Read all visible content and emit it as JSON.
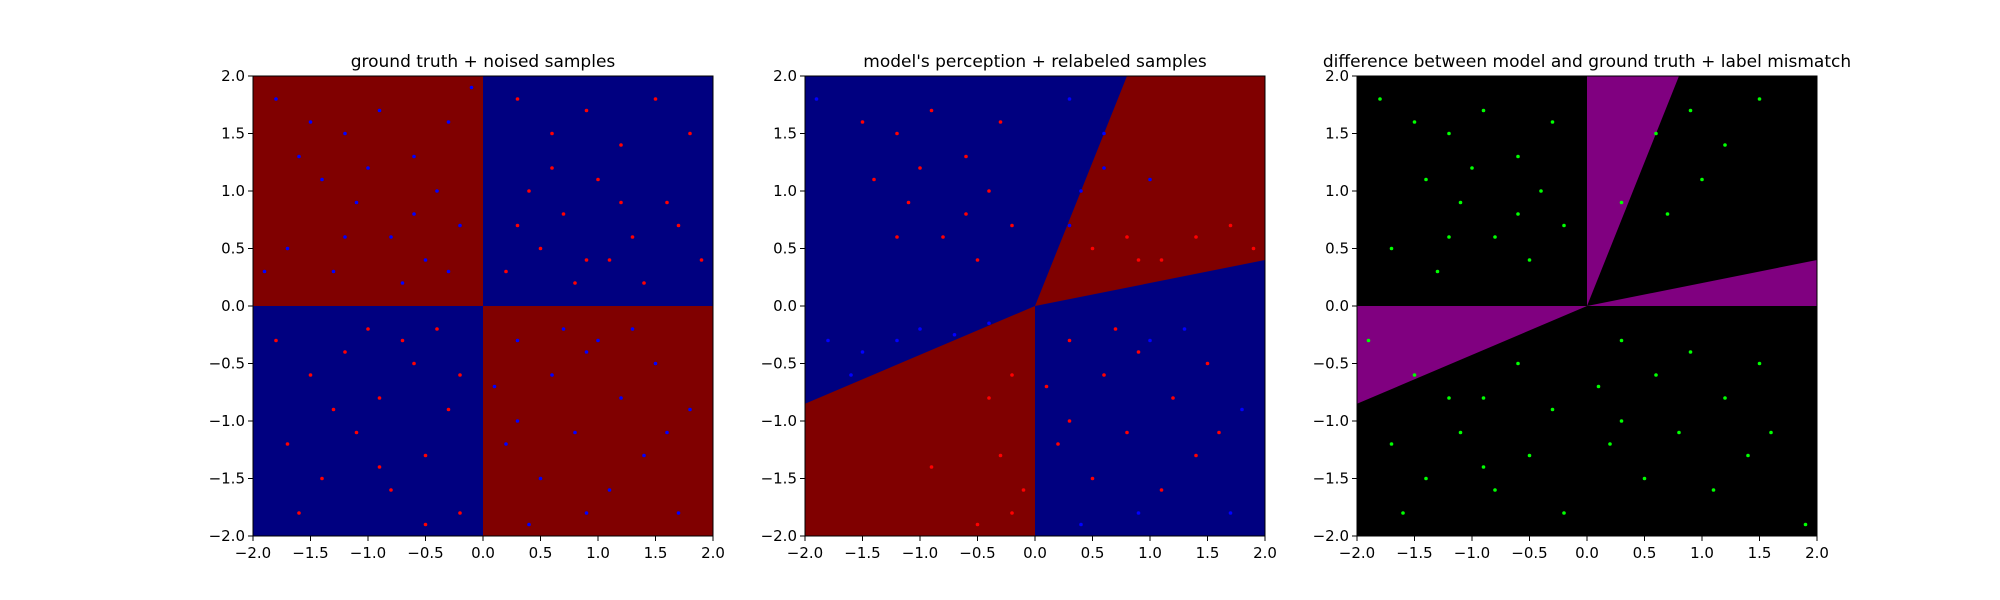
{
  "chart_data": [
    {
      "type": "scatter",
      "title": "ground truth + noised samples",
      "xlim": [
        -2.0,
        2.0
      ],
      "ylim": [
        -2.0,
        2.0
      ],
      "xticks": [
        "−2.0",
        "−1.5",
        "−1.0",
        "−0.5",
        "0.0",
        "0.5",
        "1.0",
        "1.5",
        "2.0"
      ],
      "yticks": [
        "−2.0",
        "−1.5",
        "−1.0",
        "−0.5",
        "0.0",
        "0.5",
        "1.0",
        "1.5",
        "2.0"
      ],
      "background": {
        "regions": [
          {
            "description": "x<0,y>0",
            "color": "#800000"
          },
          {
            "description": "x>0,y>0",
            "color": "#000080"
          },
          {
            "description": "x<0,y<0",
            "color": "#000080"
          },
          {
            "description": "x>0,y<0",
            "color": "#800000"
          }
        ]
      },
      "series": [
        {
          "color": "#0000ff",
          "points": [
            [
              -1.8,
              1.8
            ],
            [
              -1.5,
              1.6
            ],
            [
              -1.2,
              1.5
            ],
            [
              -0.9,
              1.7
            ],
            [
              -0.6,
              1.3
            ],
            [
              -0.3,
              1.6
            ],
            [
              -0.2,
              0.7
            ],
            [
              -0.5,
              0.4
            ],
            [
              -0.8,
              0.6
            ],
            [
              -1.1,
              0.9
            ],
            [
              -1.4,
              1.1
            ],
            [
              -1.7,
              0.5
            ],
            [
              -1.9,
              0.3
            ],
            [
              -1.3,
              0.3
            ],
            [
              -0.7,
              0.2
            ],
            [
              -0.3,
              0.3
            ],
            [
              -0.4,
              1.0
            ],
            [
              -1.0,
              1.2
            ],
            [
              -1.6,
              1.3
            ],
            [
              -0.1,
              1.9
            ],
            [
              -0.6,
              0.8
            ],
            [
              -1.2,
              0.6
            ],
            [
              0.3,
              -0.3
            ],
            [
              0.6,
              -0.6
            ],
            [
              0.9,
              -0.4
            ],
            [
              1.2,
              -0.8
            ],
            [
              1.5,
              -0.5
            ],
            [
              1.8,
              -0.9
            ],
            [
              0.2,
              -1.2
            ],
            [
              0.5,
              -1.5
            ],
            [
              0.8,
              -1.1
            ],
            [
              1.1,
              -1.6
            ],
            [
              1.4,
              -1.3
            ],
            [
              1.7,
              -1.8
            ],
            [
              0.4,
              -1.9
            ],
            [
              0.7,
              -0.2
            ],
            [
              1.0,
              -0.3
            ],
            [
              1.3,
              -0.2
            ],
            [
              0.1,
              -0.7
            ],
            [
              1.6,
              -1.1
            ],
            [
              0.9,
              -1.8
            ],
            [
              0.3,
              -1.0
            ]
          ]
        },
        {
          "color": "#ff0000",
          "points": [
            [
              0.3,
              1.8
            ],
            [
              0.6,
              1.5
            ],
            [
              0.9,
              1.7
            ],
            [
              1.2,
              1.4
            ],
            [
              1.5,
              1.8
            ],
            [
              1.8,
              1.5
            ],
            [
              0.4,
              1.0
            ],
            [
              0.7,
              0.8
            ],
            [
              1.0,
              1.1
            ],
            [
              1.3,
              0.6
            ],
            [
              1.6,
              0.9
            ],
            [
              1.9,
              0.4
            ],
            [
              0.2,
              0.3
            ],
            [
              0.5,
              0.5
            ],
            [
              0.8,
              0.2
            ],
            [
              1.1,
              0.4
            ],
            [
              1.4,
              0.2
            ],
            [
              1.7,
              0.7
            ],
            [
              0.3,
              0.7
            ],
            [
              0.6,
              1.2
            ],
            [
              1.2,
              0.9
            ],
            [
              0.9,
              0.4
            ],
            [
              -1.8,
              -0.3
            ],
            [
              -1.5,
              -0.6
            ],
            [
              -1.2,
              -0.4
            ],
            [
              -0.9,
              -0.8
            ],
            [
              -0.6,
              -0.5
            ],
            [
              -0.3,
              -0.9
            ],
            [
              -1.7,
              -1.2
            ],
            [
              -1.4,
              -1.5
            ],
            [
              -1.1,
              -1.1
            ],
            [
              -0.8,
              -1.6
            ],
            [
              -0.5,
              -1.3
            ],
            [
              -0.2,
              -1.8
            ],
            [
              -1.6,
              -1.8
            ],
            [
              -1.0,
              -0.2
            ],
            [
              -0.7,
              -0.3
            ],
            [
              -0.4,
              -0.2
            ],
            [
              -1.3,
              -0.9
            ],
            [
              -0.2,
              -0.6
            ],
            [
              -0.9,
              -1.4
            ],
            [
              -0.5,
              -1.9
            ]
          ]
        }
      ]
    },
    {
      "type": "scatter",
      "title": "model's perception + relabeled samples",
      "xlim": [
        -2.0,
        2.0
      ],
      "ylim": [
        -2.0,
        2.0
      ],
      "xticks": [
        "−2.0",
        "−1.5",
        "−1.0",
        "−0.5",
        "0.0",
        "0.5",
        "1.0",
        "1.5",
        "2.0"
      ],
      "yticks": [
        "−2.0",
        "−1.5",
        "−1.0",
        "−0.5",
        "0.0",
        "0.5",
        "1.0",
        "1.5",
        "2.0"
      ],
      "background": {
        "base_color": "#000080",
        "regions": [
          {
            "description": "wedge between y=2.7x and y=0.2x, x>0",
            "color": "#800000",
            "polygon": [
              [
                0,
                0
              ],
              [
                0.8,
                2.0
              ],
              [
                2.0,
                2.0
              ],
              [
                2.0,
                0.4
              ]
            ]
          },
          {
            "description": "wedge between y=0.42x and x=0, x<0",
            "color": "#800000",
            "polygon": [
              [
                0,
                0
              ],
              [
                -2.0,
                -0.85
              ],
              [
                -2.0,
                -2.0
              ],
              [
                0,
                -2.0
              ]
            ]
          }
        ]
      },
      "series": [
        {
          "color": "#ff0000",
          "points": [
            [
              -1.5,
              1.6
            ],
            [
              -1.2,
              1.5
            ],
            [
              -0.9,
              1.7
            ],
            [
              -0.6,
              1.3
            ],
            [
              -0.3,
              1.6
            ],
            [
              -0.2,
              0.7
            ],
            [
              -0.5,
              0.4
            ],
            [
              -0.8,
              0.6
            ],
            [
              -1.1,
              0.9
            ],
            [
              -1.4,
              1.1
            ],
            [
              -0.4,
              1.0
            ],
            [
              -1.0,
              1.2
            ],
            [
              -0.6,
              0.8
            ],
            [
              -1.2,
              0.6
            ],
            [
              0.3,
              -0.3
            ],
            [
              0.6,
              -0.6
            ],
            [
              0.9,
              -0.4
            ],
            [
              1.2,
              -0.8
            ],
            [
              1.5,
              -0.5
            ],
            [
              0.2,
              -1.2
            ],
            [
              0.5,
              -1.5
            ],
            [
              0.8,
              -1.1
            ],
            [
              1.1,
              -1.6
            ],
            [
              1.4,
              -1.3
            ],
            [
              0.7,
              -0.2
            ],
            [
              0.1,
              -0.7
            ],
            [
              1.6,
              -1.1
            ],
            [
              0.3,
              -1.0
            ],
            [
              0.5,
              0.5
            ],
            [
              0.8,
              0.6
            ],
            [
              1.1,
              0.4
            ],
            [
              1.4,
              0.6
            ],
            [
              1.7,
              0.7
            ],
            [
              0.9,
              0.4
            ],
            [
              1.9,
              0.5
            ],
            [
              -0.2,
              -0.6
            ],
            [
              -0.4,
              -0.8
            ],
            [
              -0.3,
              -1.3
            ],
            [
              -0.1,
              -1.6
            ],
            [
              -0.5,
              -1.9
            ],
            [
              -0.2,
              -1.8
            ],
            [
              -0.9,
              -1.4
            ]
          ]
        },
        {
          "color": "#0000ff",
          "points": [
            [
              -1.8,
              -0.3
            ],
            [
              -1.5,
              -0.4
            ],
            [
              -1.2,
              -0.3
            ],
            [
              -1.0,
              -0.2
            ],
            [
              -0.7,
              -0.25
            ],
            [
              -0.4,
              -0.15
            ],
            [
              -1.6,
              -0.6
            ],
            [
              -1.9,
              1.8
            ],
            [
              0.3,
              1.8
            ],
            [
              0.6,
              1.5
            ],
            [
              1.0,
              1.1
            ],
            [
              0.4,
              1.0
            ],
            [
              0.3,
              0.7
            ],
            [
              0.6,
              1.2
            ],
            [
              1.3,
              -0.2
            ],
            [
              1.0,
              -0.3
            ],
            [
              1.8,
              -0.9
            ],
            [
              0.4,
              -1.9
            ],
            [
              1.7,
              -1.8
            ],
            [
              0.9,
              -1.8
            ]
          ]
        }
      ]
    },
    {
      "type": "scatter",
      "title": "difference between model and ground truth + label mismatch",
      "xlim": [
        -2.0,
        2.0
      ],
      "ylim": [
        -2.0,
        2.0
      ],
      "xticks": [
        "−2.0",
        "−1.5",
        "−1.0",
        "−0.5",
        "0.0",
        "0.5",
        "1.0",
        "1.5",
        "2.0"
      ],
      "yticks": [
        "−2.0",
        "−1.5",
        "−1.0",
        "−0.5",
        "0.0",
        "0.5",
        "1.0",
        "1.5",
        "2.0"
      ],
      "background": {
        "base_color": "#000000",
        "regions": [
          {
            "description": "mismatch wedge upper",
            "color": "#800080",
            "polygon": [
              [
                0,
                0
              ],
              [
                0,
                2.0
              ],
              [
                0.8,
                2.0
              ]
            ]
          },
          {
            "description": "mismatch wedge right",
            "color": "#800080",
            "polygon": [
              [
                0,
                0
              ],
              [
                2.0,
                0.4
              ],
              [
                2.0,
                0
              ]
            ]
          },
          {
            "description": "mismatch wedge left",
            "color": "#800080",
            "polygon": [
              [
                0,
                0
              ],
              [
                -2.0,
                0
              ],
              [
                -2.0,
                -0.85
              ]
            ]
          }
        ]
      },
      "series": [
        {
          "color": "#00ff00",
          "points": [
            [
              -1.8,
              1.8
            ],
            [
              -1.5,
              1.6
            ],
            [
              -1.2,
              1.5
            ],
            [
              -0.9,
              1.7
            ],
            [
              -0.6,
              1.3
            ],
            [
              -0.3,
              1.6
            ],
            [
              -0.2,
              0.7
            ],
            [
              -0.5,
              0.4
            ],
            [
              -0.8,
              0.6
            ],
            [
              -1.1,
              0.9
            ],
            [
              -1.4,
              1.1
            ],
            [
              -1.7,
              0.5
            ],
            [
              -1.3,
              0.3
            ],
            [
              -0.4,
              1.0
            ],
            [
              -1.0,
              1.2
            ],
            [
              -0.6,
              0.8
            ],
            [
              -1.2,
              0.6
            ],
            [
              0.6,
              1.5
            ],
            [
              0.9,
              1.7
            ],
            [
              1.2,
              1.4
            ],
            [
              1.5,
              1.8
            ],
            [
              0.7,
              0.8
            ],
            [
              1.0,
              1.1
            ],
            [
              0.3,
              0.9
            ],
            [
              0.3,
              -0.3
            ],
            [
              0.6,
              -0.6
            ],
            [
              0.9,
              -0.4
            ],
            [
              1.2,
              -0.8
            ],
            [
              1.5,
              -0.5
            ],
            [
              0.2,
              -1.2
            ],
            [
              0.5,
              -1.5
            ],
            [
              0.8,
              -1.1
            ],
            [
              1.1,
              -1.6
            ],
            [
              1.4,
              -1.3
            ],
            [
              0.1,
              -0.7
            ],
            [
              1.6,
              -1.1
            ],
            [
              0.3,
              -1.0
            ],
            [
              -1.5,
              -0.6
            ],
            [
              -1.2,
              -0.8
            ],
            [
              -0.9,
              -0.8
            ],
            [
              -0.6,
              -0.5
            ],
            [
              -0.3,
              -0.9
            ],
            [
              -1.7,
              -1.2
            ],
            [
              -1.4,
              -1.5
            ],
            [
              -1.1,
              -1.1
            ],
            [
              -0.8,
              -1.6
            ],
            [
              -0.5,
              -1.3
            ],
            [
              -0.2,
              -1.8
            ],
            [
              -1.6,
              -1.8
            ],
            [
              -0.9,
              -1.4
            ],
            [
              1.9,
              -1.9
            ],
            [
              -1.9,
              -0.3
            ]
          ]
        }
      ]
    }
  ]
}
